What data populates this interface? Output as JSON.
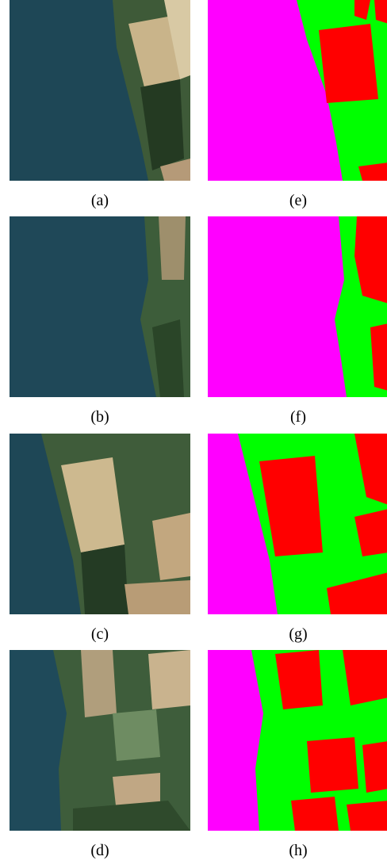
{
  "panels": {
    "left": [
      "(a)",
      "(b)",
      "(c)",
      "(d)"
    ],
    "right": [
      "(e)",
      "(f)",
      "(g)",
      "(h)"
    ]
  }
}
